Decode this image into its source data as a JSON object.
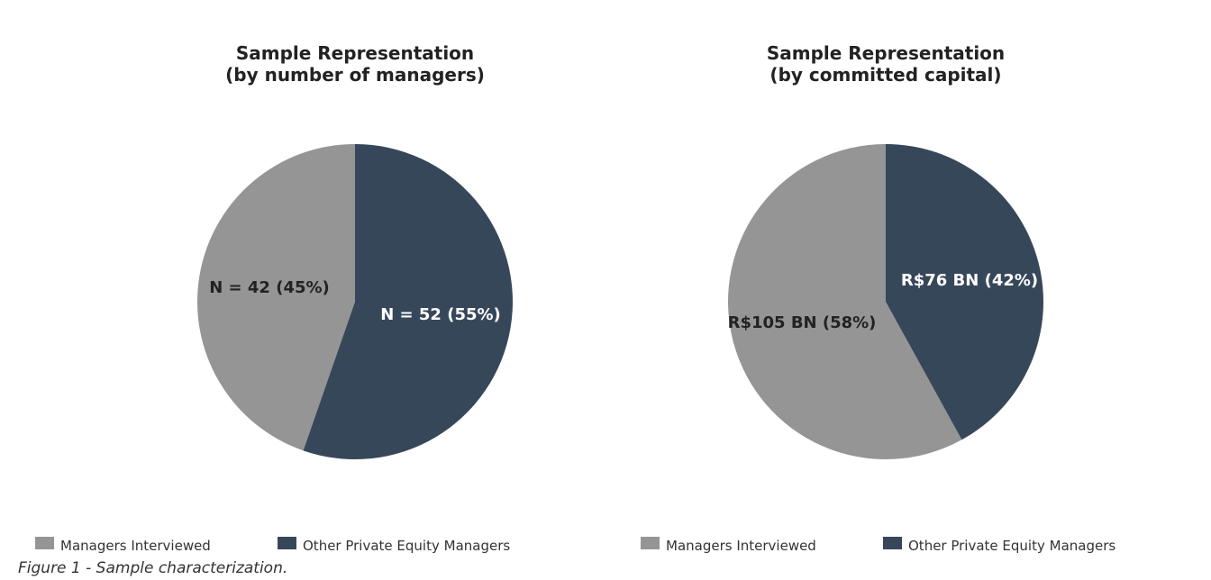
{
  "chart_data": [
    {
      "type": "pie",
      "title": [
        "Sample Representation",
        "(by number of managers)"
      ],
      "categories": [
        "Managers Interviewed",
        "Other Private Equity Managers"
      ],
      "values": [
        42,
        52
      ],
      "labels": [
        "N = 42 (45%)",
        "N = 52 (55%)"
      ],
      "colors": [
        "#959595",
        "#37475a"
      ],
      "label_colors": [
        "#222222",
        "#ffffff"
      ],
      "legend_placement": "bottom"
    },
    {
      "type": "pie",
      "title": [
        "Sample Representation",
        "(by committed capital)"
      ],
      "categories": [
        "Managers Interviewed",
        "Other Private Equity Managers"
      ],
      "values": [
        105,
        76
      ],
      "labels": [
        "R$105 BN (58%)",
        "R$76 BN (42%)"
      ],
      "colors": [
        "#959595",
        "#37475a"
      ],
      "label_colors": [
        "#222222",
        "#ffffff"
      ],
      "legend_placement": "bottom"
    }
  ],
  "caption": "Figure 1 - Sample characterization."
}
